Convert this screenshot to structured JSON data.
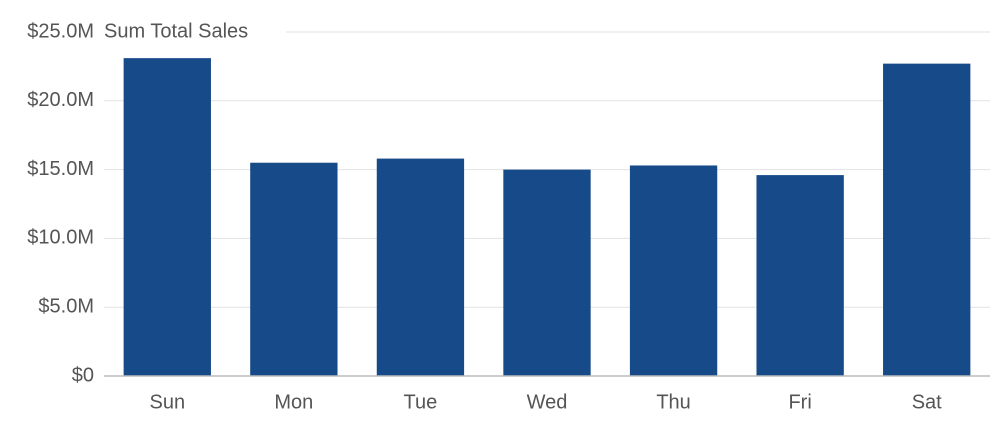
{
  "chart_data": {
    "type": "bar",
    "title": "Sum Total Sales",
    "categories": [
      "Sun",
      "Mon",
      "Tue",
      "Wed",
      "Thu",
      "Fri",
      "Sat"
    ],
    "values": [
      23100000,
      15500000,
      15800000,
      15000000,
      15300000,
      14600000,
      22700000
    ],
    "color": "#174a89",
    "ylim": [
      0,
      25000000
    ],
    "yticks": [
      {
        "value": 0,
        "label": "$0"
      },
      {
        "value": 5000000,
        "label": "$5.0M"
      },
      {
        "value": 10000000,
        "label": "$10.0M"
      },
      {
        "value": 15000000,
        "label": "$15.0M"
      },
      {
        "value": 20000000,
        "label": "$20.0M"
      },
      {
        "value": 25000000,
        "label": "$25.0M"
      }
    ],
    "grid": true
  }
}
